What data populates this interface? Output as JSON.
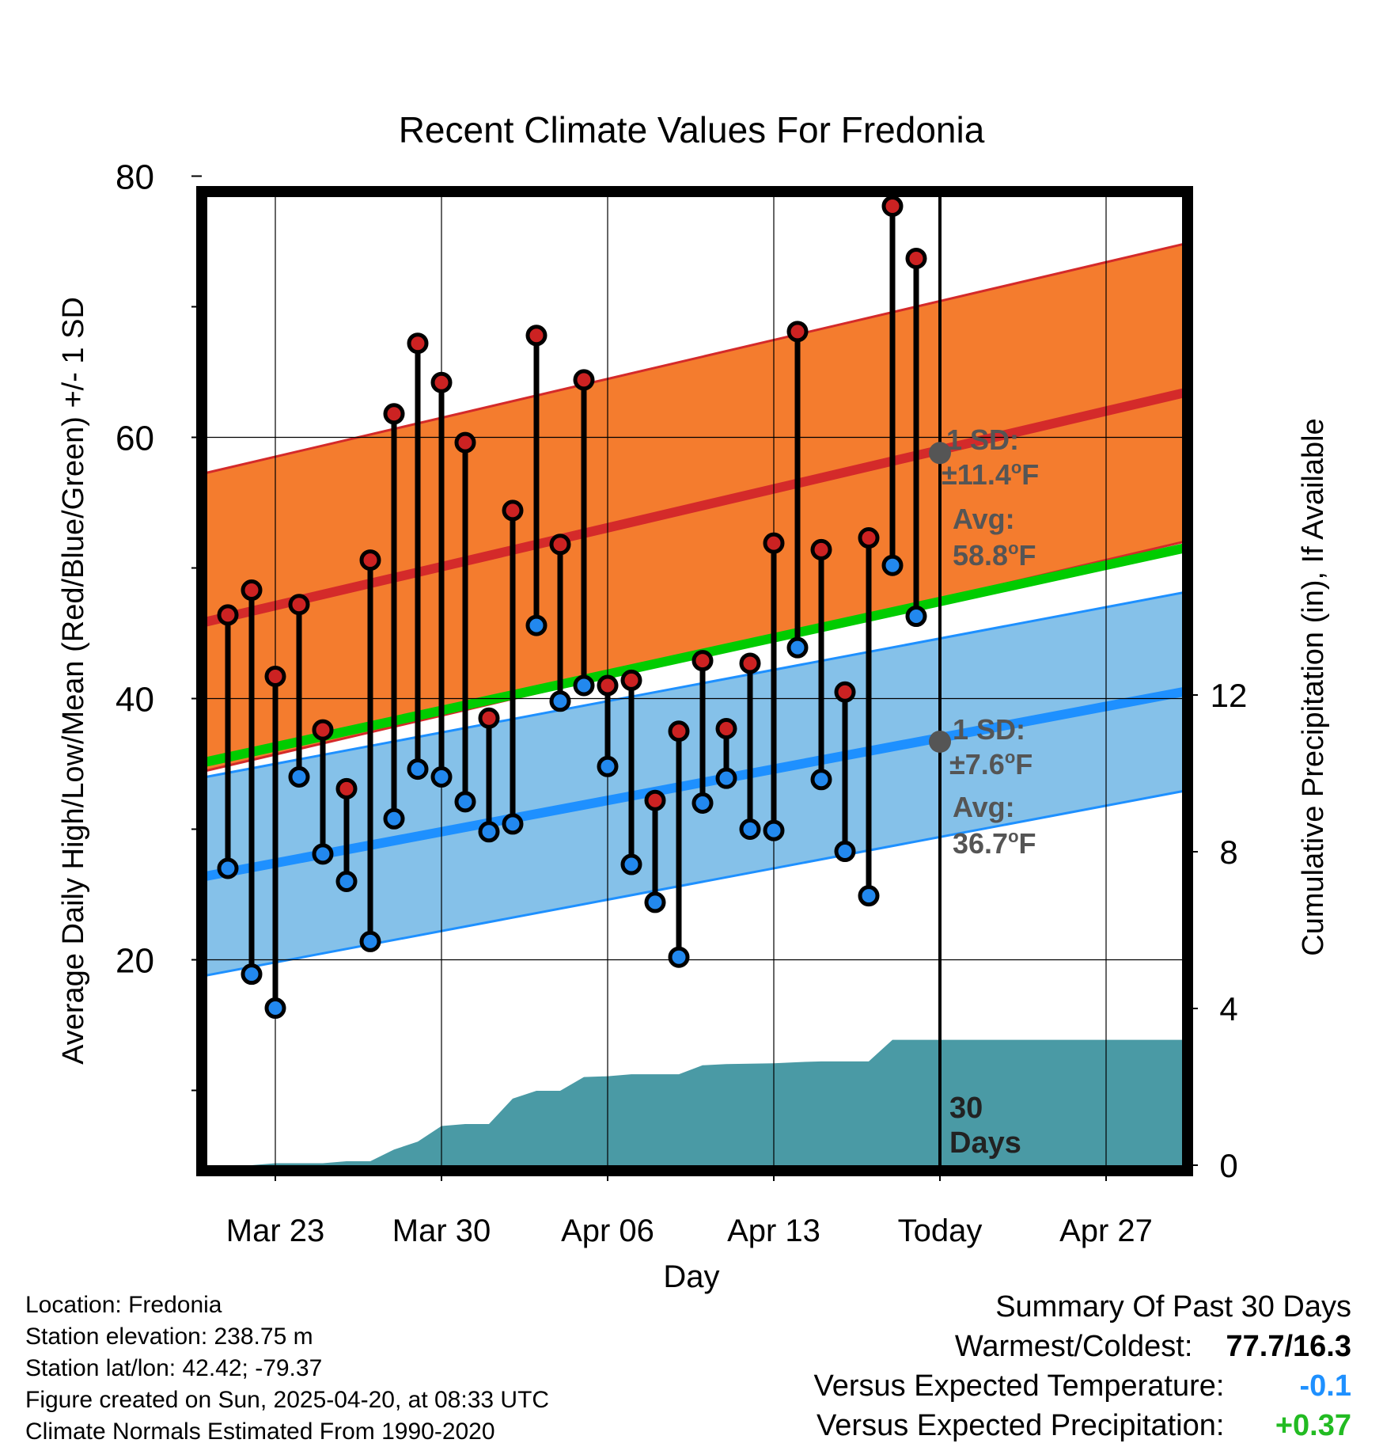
{
  "chart_data": {
    "type": "line",
    "title": "Recent Climate Values For Fredonia",
    "xlabel": "Day",
    "ylabel_left": "Average Daily High/Low/Mean (Red/Blue/Green) +/- 1 SD",
    "ylabel_right": "Cumulative Precipitation (in), If Available",
    "x_ticks": [
      {
        "day": 3,
        "label": "Mar 23"
      },
      {
        "day": 10,
        "label": "Mar 30"
      },
      {
        "day": 17,
        "label": "Apr 06"
      },
      {
        "day": 24,
        "label": "Apr 13"
      },
      {
        "day": 31,
        "label": "Today"
      },
      {
        "day": 38,
        "label": "Apr 27"
      }
    ],
    "x_range": [
      "Mar 20",
      "May 01"
    ],
    "ylim": [
      8,
      82
    ],
    "y_ticks": [
      20,
      40,
      60,
      80
    ],
    "y2lim": [
      0,
      18
    ],
    "y2_ticks": [
      0,
      4,
      8,
      12
    ],
    "grid": true,
    "normals": {
      "high_mean": [
        45.5,
        63.5
      ],
      "high_sd": 11.4,
      "low_mean": [
        26.1,
        40.6
      ],
      "low_sd": 7.6,
      "mean": [
        34.8,
        51.6
      ]
    },
    "annotations": {
      "high_sd_label": "1 SD:",
      "high_sd_value": "±11.4",
      "high_avg_label": "Avg:",
      "high_avg_value": "58.8",
      "low_sd_label": "1 SD:",
      "low_sd_value": "±7.6",
      "low_avg_label": "Avg:",
      "low_avg_value": "36.7",
      "degree_unit": "o",
      "unit": "F",
      "days_line1": "30",
      "days_line2": "Days"
    },
    "today_high_avg": 58.8,
    "today_low_avg": 36.7,
    "days": [
      {
        "day": 1,
        "high": 46.4,
        "low": 27.0
      },
      {
        "day": 2,
        "high": 48.3,
        "low": 18.9
      },
      {
        "day": 3,
        "high": 41.7,
        "low": 16.3
      },
      {
        "day": 4,
        "high": 47.2,
        "low": 34.0
      },
      {
        "day": 5,
        "high": 37.6,
        "low": 28.1
      },
      {
        "day": 6,
        "high": 33.1,
        "low": 26.0
      },
      {
        "day": 7,
        "high": 50.6,
        "low": 21.4
      },
      {
        "day": 8,
        "high": 61.8,
        "low": 30.8
      },
      {
        "day": 9,
        "high": 67.2,
        "low": 34.6
      },
      {
        "day": 10,
        "high": 64.2,
        "low": 34.0
      },
      {
        "day": 11,
        "high": 59.6,
        "low": 32.1
      },
      {
        "day": 12,
        "high": 38.5,
        "low": 29.8
      },
      {
        "day": 13,
        "high": 54.4,
        "low": 30.4
      },
      {
        "day": 14,
        "high": 67.8,
        "low": 45.6
      },
      {
        "day": 15,
        "high": 51.8,
        "low": 39.8
      },
      {
        "day": 16,
        "high": 64.4,
        "low": 41.0
      },
      {
        "day": 17,
        "high": 41.0,
        "low": 34.8
      },
      {
        "day": 18,
        "high": 41.4,
        "low": 27.3
      },
      {
        "day": 19,
        "high": 32.2,
        "low": 24.4
      },
      {
        "day": 20,
        "high": 37.5,
        "low": 20.2
      },
      {
        "day": 21,
        "high": 42.9,
        "low": 32.0
      },
      {
        "day": 22,
        "high": 37.7,
        "low": 33.9
      },
      {
        "day": 23,
        "high": 42.7,
        "low": 30.0
      },
      {
        "day": 24,
        "high": 51.9,
        "low": 29.9
      },
      {
        "day": 25,
        "high": 68.1,
        "low": 43.9
      },
      {
        "day": 26,
        "high": 51.4,
        "low": 33.8
      },
      {
        "day": 27,
        "high": 40.5,
        "low": 28.3
      },
      {
        "day": 28,
        "high": 52.3,
        "low": 24.9
      },
      {
        "day": 29,
        "high": 77.7,
        "low": 50.2
      },
      {
        "day": 30,
        "high": 73.7,
        "low": 46.3
      }
    ],
    "precip_cumulative": [
      {
        "day": 0,
        "in": 0.0
      },
      {
        "day": 2,
        "in": 0.0
      },
      {
        "day": 3,
        "in": 0.05
      },
      {
        "day": 5,
        "in": 0.05
      },
      {
        "day": 6,
        "in": 0.1
      },
      {
        "day": 7,
        "in": 0.1
      },
      {
        "day": 8,
        "in": 0.4
      },
      {
        "day": 9,
        "in": 0.6
      },
      {
        "day": 10,
        "in": 1.0
      },
      {
        "day": 11,
        "in": 1.05
      },
      {
        "day": 12,
        "in": 1.05
      },
      {
        "day": 13,
        "in": 1.7
      },
      {
        "day": 14,
        "in": 1.9
      },
      {
        "day": 15,
        "in": 1.9
      },
      {
        "day": 16,
        "in": 2.25
      },
      {
        "day": 17,
        "in": 2.27
      },
      {
        "day": 18,
        "in": 2.32
      },
      {
        "day": 20,
        "in": 2.32
      },
      {
        "day": 21,
        "in": 2.55
      },
      {
        "day": 22,
        "in": 2.58
      },
      {
        "day": 24,
        "in": 2.6
      },
      {
        "day": 25,
        "in": 2.63
      },
      {
        "day": 26,
        "in": 2.65
      },
      {
        "day": 28,
        "in": 2.65
      },
      {
        "day": 29,
        "in": 3.2
      },
      {
        "day": 33,
        "in": 3.2
      }
    ]
  },
  "footer": {
    "line1": "Location: Fredonia",
    "line2": "Station elevation: 238.75 m",
    "line3": "Station lat/lon: 42.42; -79.37",
    "line4": "Figure created on Sun, 2025-04-20, at 08:33 UTC",
    "line5": "Climate Normals Estimated From 1990-2020"
  },
  "summary": {
    "title": "Summary Of Past 30 Days",
    "warmest_label": "Warmest/Coldest:",
    "warmest_value": "77.7/16.3",
    "temp_label": "Versus Expected Temperature:",
    "temp_value": "-0.1",
    "precip_label": "Versus Expected Precipitation:",
    "precip_value": "+0.37"
  },
  "colors": {
    "high_band": "#f47c2e",
    "high_line": "#d42a2a",
    "low_band": "#85c1e9",
    "low_line": "#1e90ff",
    "mean_line": "#00cc00",
    "overlap": "#9b1c1c",
    "precip": "#4a9aa5",
    "marker_high": "#cc2222",
    "marker_low": "#2288ee",
    "annotation": "#555555",
    "temp_value": "#1e90ff",
    "precip_value": "#22bb22"
  }
}
